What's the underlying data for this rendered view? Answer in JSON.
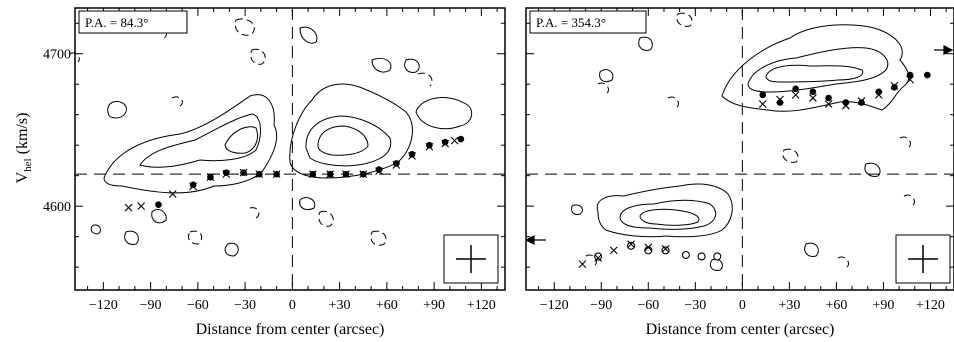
{
  "chart_data": [
    {
      "type": "scatter",
      "panel_label": "P.A. = 84.3°",
      "xlabel": "Distance from center (arcsec)",
      "ylabel_main": "V",
      "ylabel_sub": "hel",
      "ylabel_unit": " (km/s)",
      "xlim": [
        -138,
        135
      ],
      "ylim": [
        4545,
        4730
      ],
      "x_ticks": [
        -120,
        -90,
        -60,
        -30,
        0,
        30,
        60,
        90,
        120
      ],
      "x_tick_labels": [
        "−120",
        "−90",
        "−60",
        "−30",
        "0",
        "+30",
        "+60",
        "+90",
        "+120"
      ],
      "y_ticks": [
        4600,
        4700
      ],
      "y_tick_labels": [
        "4600",
        "4700"
      ],
      "systemic_velocity": 4621,
      "center_x": 0,
      "series": [
        {
          "marker": "filled-circle",
          "points": [
            [
              -85,
              4601
            ],
            [
              -63,
              4614
            ],
            [
              -52,
              4619
            ],
            [
              -42,
              4622
            ],
            [
              -31,
              4622
            ],
            [
              -21,
              4621
            ],
            [
              -10,
              4621
            ],
            [
              13,
              4621
            ],
            [
              24,
              4621
            ],
            [
              34,
              4621
            ],
            [
              45,
              4621
            ],
            [
              55,
              4624
            ],
            [
              66,
              4628
            ],
            [
              76,
              4634
            ],
            [
              87,
              4640
            ],
            [
              97,
              4642
            ],
            [
              107,
              4644
            ]
          ]
        },
        {
          "marker": "cross",
          "points": [
            [
              -104,
              4599
            ],
            [
              -96,
              4600
            ],
            [
              -76,
              4608
            ],
            [
              -63,
              4613
            ],
            [
              -52,
              4619
            ],
            [
              -42,
              4621
            ],
            [
              -31,
              4622
            ],
            [
              -21,
              4621
            ],
            [
              -10,
              4621
            ],
            [
              13,
              4621
            ],
            [
              24,
              4621
            ],
            [
              34,
              4621
            ],
            [
              45,
              4621
            ],
            [
              55,
              4623
            ],
            [
              66,
              4627
            ],
            [
              76,
              4633
            ],
            [
              87,
              4639
            ],
            [
              97,
              4641
            ],
            [
              103,
              4643
            ]
          ]
        }
      ]
    },
    {
      "type": "scatter",
      "panel_label": "P.A. = 354.3°",
      "xlabel": "Distance from center (arcsec)",
      "xlim": [
        -138,
        135
      ],
      "ylim": [
        4545,
        4730
      ],
      "x_ticks": [
        -120,
        -90,
        -60,
        -30,
        0,
        30,
        60,
        90,
        120
      ],
      "x_tick_labels": [
        "−120",
        "−90",
        "−60",
        "−30",
        "0",
        "+30",
        "+60",
        "+90",
        "+120"
      ],
      "y_ticks": [
        4600,
        4700
      ],
      "systemic_velocity": 4621,
      "center_x": 0,
      "series": [
        {
          "marker": "open-circle",
          "points": [
            [
              -92,
              4567
            ],
            [
              -71,
              4574
            ],
            [
              -60,
              4571
            ],
            [
              -49,
              4571
            ],
            [
              -36,
              4568
            ],
            [
              -26,
              4567
            ],
            [
              -16,
              4567
            ]
          ]
        },
        {
          "marker": "filled-circle",
          "points": [
            [
              13,
              4673
            ],
            [
              24,
              4668
            ],
            [
              34,
              4677
            ],
            [
              45,
              4675
            ],
            [
              55,
              4671
            ],
            [
              66,
              4668
            ],
            [
              76,
              4668
            ],
            [
              87,
              4675
            ],
            [
              97,
              4678
            ],
            [
              107,
              4686
            ],
            [
              118,
              4686
            ]
          ]
        },
        {
          "marker": "cross",
          "points": [
            [
              -102,
              4562
            ],
            [
              -92,
              4566
            ],
            [
              -82,
              4571
            ],
            [
              -71,
              4575
            ],
            [
              -60,
              4573
            ],
            [
              -49,
              4572
            ],
            [
              13,
              4667
            ],
            [
              24,
              4670
            ],
            [
              34,
              4673
            ],
            [
              45,
              4671
            ],
            [
              55,
              4667
            ],
            [
              66,
              4666
            ],
            [
              76,
              4669
            ],
            [
              87,
              4673
            ],
            [
              97,
              4679
            ],
            [
              107,
              4683
            ]
          ]
        }
      ]
    }
  ]
}
